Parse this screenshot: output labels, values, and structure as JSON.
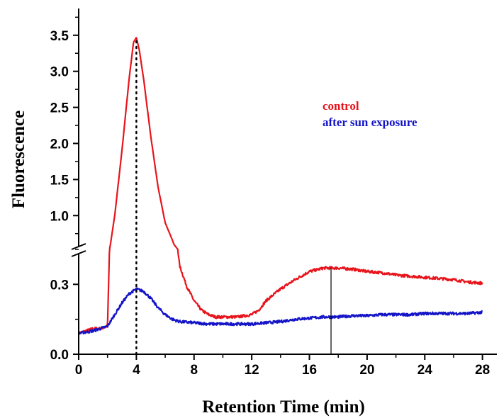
{
  "chart_data": {
    "type": "line",
    "title": "",
    "xlabel": "Retention Time (min)",
    "ylabel": "Fluorescence",
    "xlim": [
      0,
      29
    ],
    "x_ticks": [
      "0",
      "4",
      "8",
      "12",
      "16",
      "20",
      "24",
      "28"
    ],
    "y_axis_broken": true,
    "ylim_lower": [
      0,
      0.45
    ],
    "ylim_upper": [
      0.6,
      3.8
    ],
    "y_ticks_lower": [
      "0.0",
      "0.3"
    ],
    "y_ticks_upper": [
      "1.0",
      "1.5",
      "2.0",
      "2.5",
      "3.0",
      "3.5"
    ],
    "reference_lines": [
      {
        "x": 4.0,
        "style": "dotted"
      },
      {
        "x": 17.5,
        "style": "solid"
      }
    ],
    "legend_position": "upper-right",
    "series": [
      {
        "name": "control",
        "color": "#e8141b",
        "x": [
          0,
          0.5,
          1.0,
          1.5,
          2.0,
          2.2,
          2.5,
          3.0,
          3.5,
          3.8,
          4.0,
          4.2,
          4.5,
          5.0,
          5.5,
          6.0,
          6.5,
          7.0,
          7.5,
          8.0,
          8.5,
          9.0,
          9.5,
          10.0,
          11.0,
          12.0,
          12.5,
          13.0,
          14.0,
          15.0,
          16.0,
          17.0,
          17.5,
          18.0,
          19.0,
          20.0,
          21.0,
          22.0,
          23.0,
          24.0,
          25.0,
          26.0,
          27.0,
          28.0
        ],
        "y": [
          0.09,
          0.1,
          0.11,
          0.11,
          0.12,
          0.6,
          1.0,
          1.9,
          2.9,
          3.4,
          3.47,
          3.3,
          2.9,
          2.1,
          1.4,
          0.9,
          0.66,
          0.38,
          0.29,
          0.23,
          0.19,
          0.17,
          0.16,
          0.16,
          0.16,
          0.17,
          0.19,
          0.23,
          0.28,
          0.32,
          0.355,
          0.37,
          0.37,
          0.37,
          0.365,
          0.355,
          0.35,
          0.34,
          0.335,
          0.33,
          0.325,
          0.32,
          0.31,
          0.305
        ]
      },
      {
        "name": "after sun exposure",
        "color": "#1414c8",
        "x": [
          0,
          0.5,
          1.0,
          1.5,
          2.0,
          2.5,
          3.0,
          3.5,
          4.0,
          4.5,
          5.0,
          5.5,
          6.0,
          6.5,
          7.0,
          8.0,
          9.0,
          10.0,
          11.0,
          12.0,
          13.0,
          14.0,
          15.0,
          16.0,
          17.0,
          18.0,
          19.0,
          20.0,
          21.0,
          22.0,
          23.0,
          24.0,
          25.0,
          26.0,
          27.0,
          28.0
        ],
        "y": [
          0.09,
          0.095,
          0.1,
          0.11,
          0.12,
          0.17,
          0.22,
          0.26,
          0.28,
          0.27,
          0.24,
          0.2,
          0.17,
          0.15,
          0.14,
          0.135,
          0.13,
          0.13,
          0.13,
          0.13,
          0.135,
          0.14,
          0.15,
          0.155,
          0.16,
          0.16,
          0.165,
          0.165,
          0.17,
          0.17,
          0.17,
          0.175,
          0.175,
          0.175,
          0.175,
          0.18
        ]
      }
    ]
  }
}
